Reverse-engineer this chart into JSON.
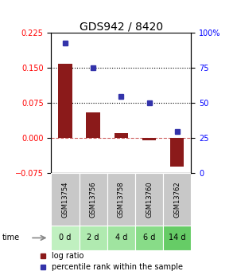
{
  "title": "GDS942 / 8420",
  "categories": [
    "GSM13754",
    "GSM13756",
    "GSM13758",
    "GSM13760",
    "GSM13762"
  ],
  "time_labels": [
    "0 d",
    "2 d",
    "4 d",
    "6 d",
    "14 d"
  ],
  "log_ratio": [
    0.16,
    0.055,
    0.01,
    -0.005,
    -0.06
  ],
  "percentile_rank": [
    93,
    75,
    55,
    50,
    30
  ],
  "left_ylim": [
    -0.075,
    0.225
  ],
  "right_ylim": [
    0,
    100
  ],
  "left_yticks": [
    -0.075,
    0,
    0.075,
    0.15,
    0.225
  ],
  "right_yticks": [
    0,
    25,
    50,
    75,
    100
  ],
  "bar_color": "#8B1A1A",
  "dot_color": "#3333AA",
  "hline_y": [
    0.075,
    0.15
  ],
  "zero_line_color": "#CD5C5C",
  "bar_width": 0.5,
  "gsm_bg_color": "#C8C8C8",
  "green_shades": [
    "#c0f0c0",
    "#b0eab0",
    "#a0e4a0",
    "#88dc88",
    "#66cc66"
  ],
  "legend_bar_color": "#8B1A1A",
  "legend_dot_color": "#3333AA",
  "title_fontsize": 10,
  "tick_fontsize": 7,
  "legend_fontsize": 7
}
